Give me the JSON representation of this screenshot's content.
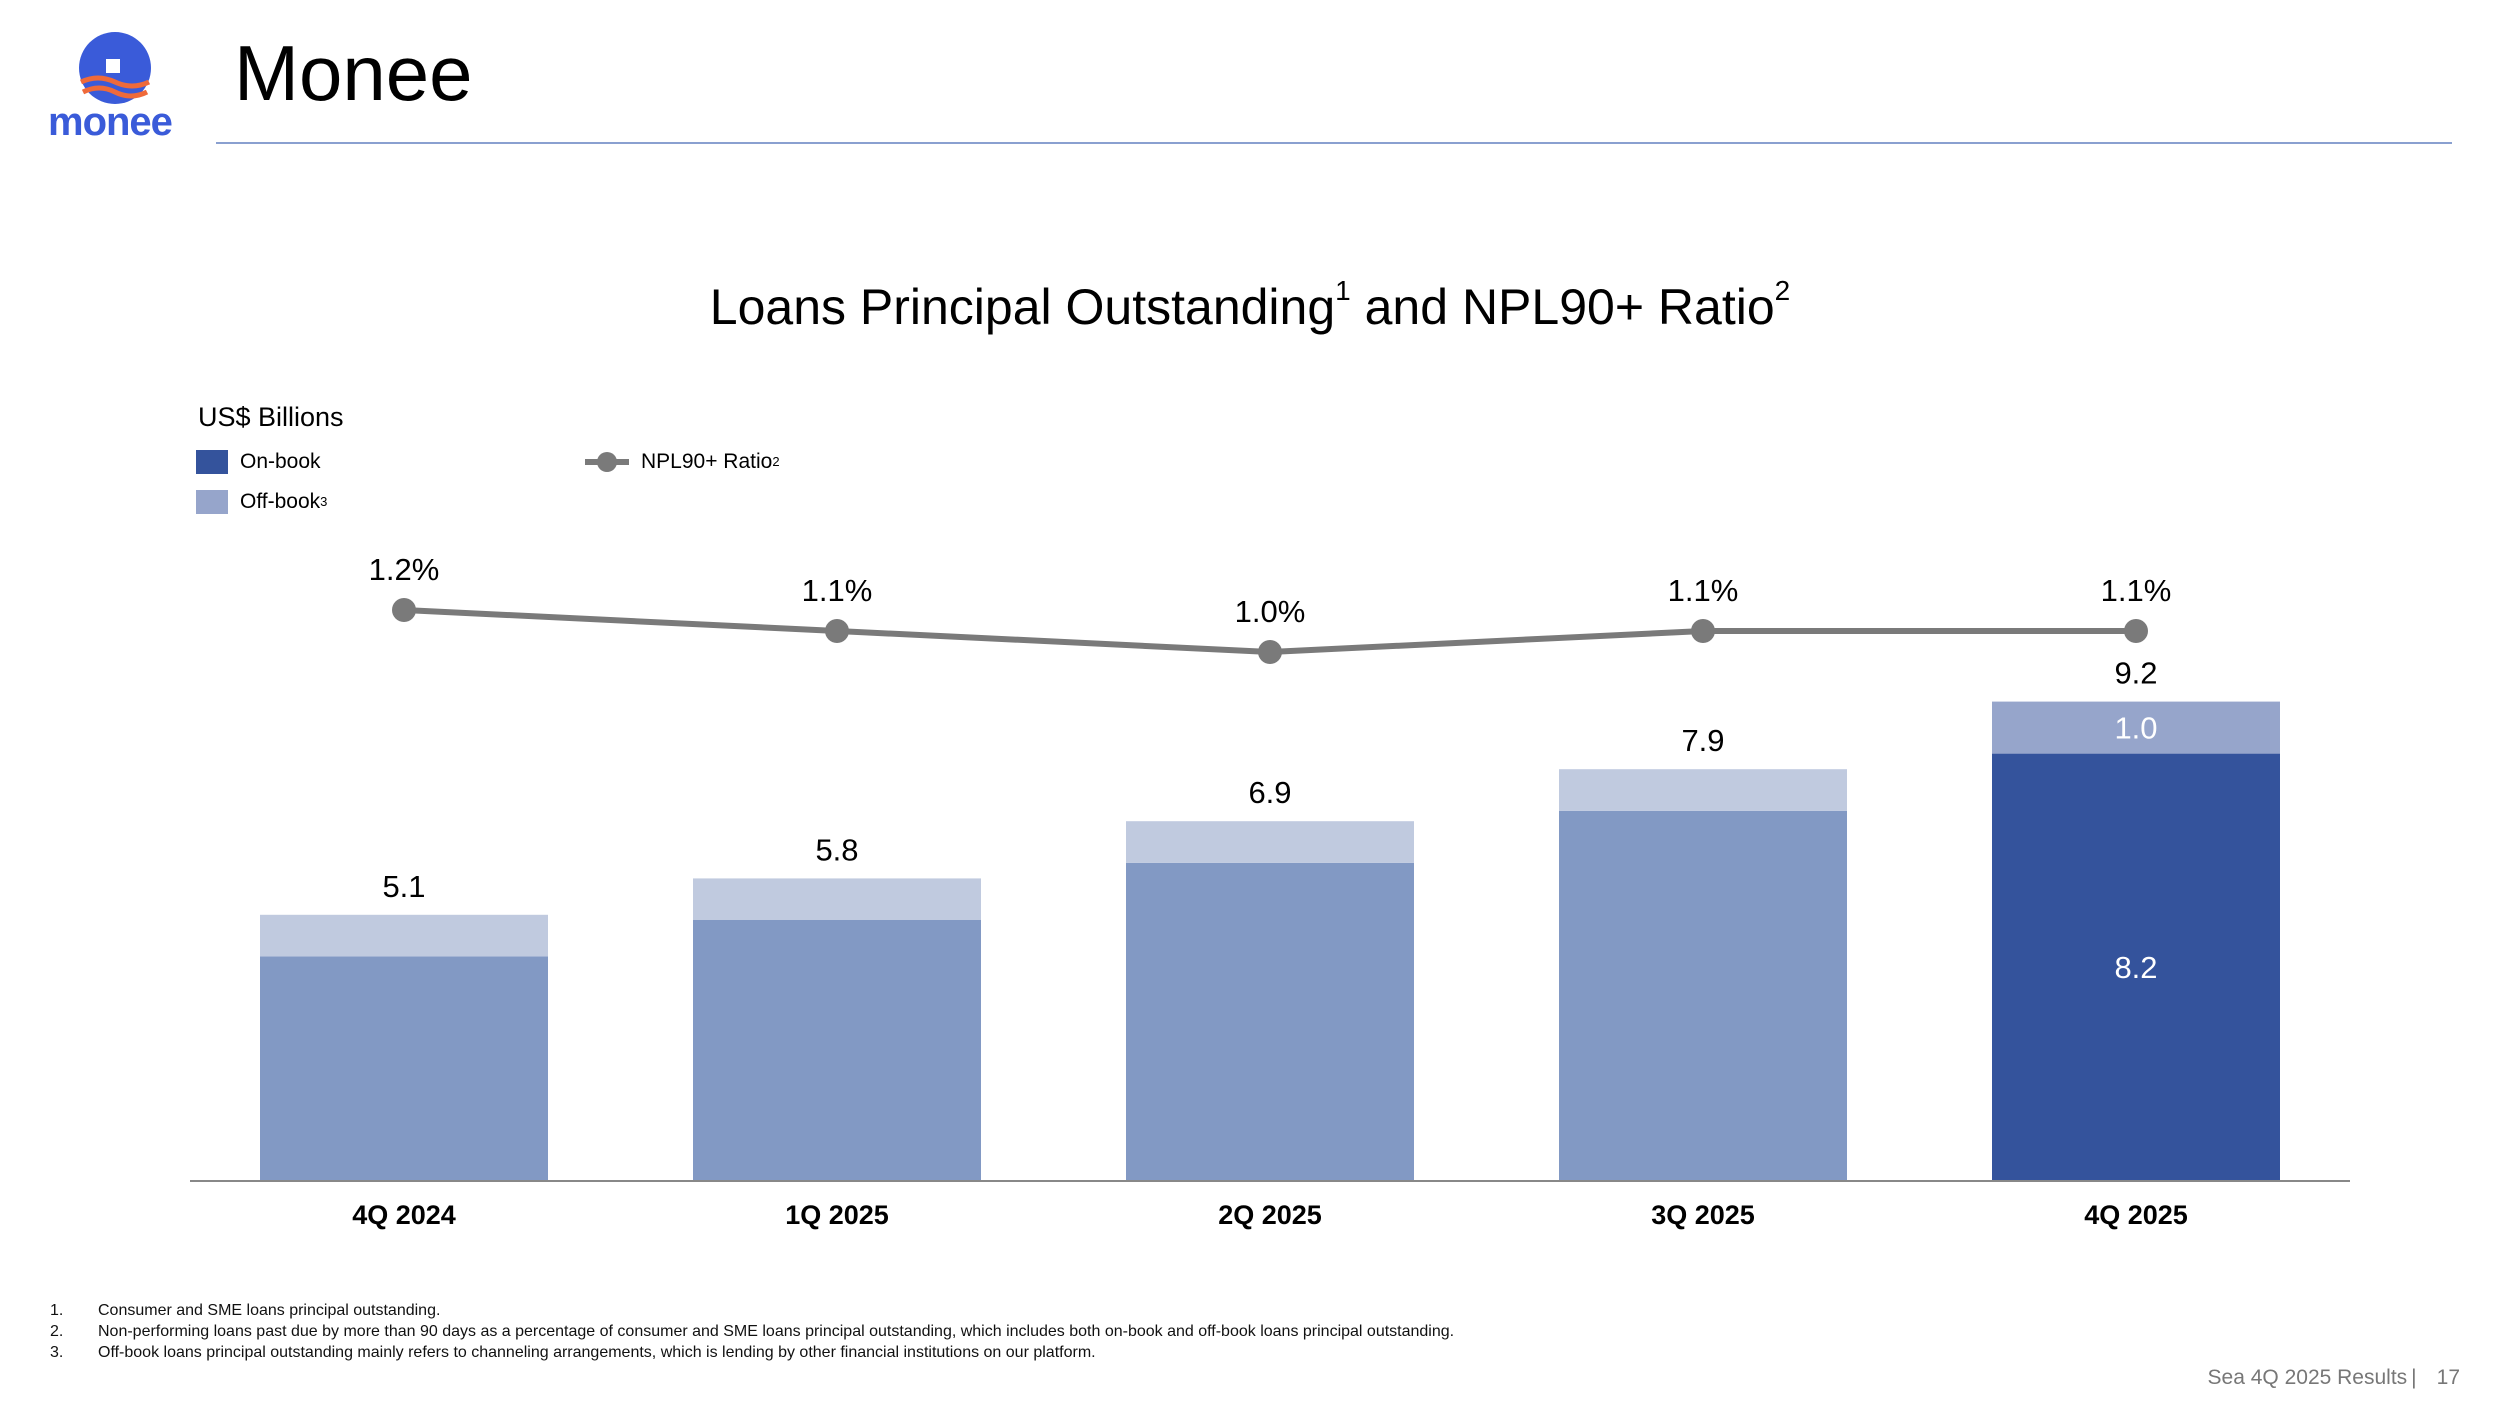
{
  "header": {
    "logo_text": "monee",
    "title": "Monee"
  },
  "colors": {
    "onbook_current": "#34539c",
    "offbook_current": "#96a5cb",
    "onbook_prior": "#8299c4",
    "offbook_prior": "#c0cadf",
    "npl_line": "#7a7a7a",
    "axis": "#888888"
  },
  "chart_data": {
    "type": "bar",
    "title": "Loans Principal Outstanding",
    "title_sup_1": "1",
    "title_mid": " and NPL90+ Ratio",
    "title_sup_2": "2",
    "ylabel": "US$ Billions",
    "categories": [
      "4Q 2024",
      "1Q 2025",
      "2Q 2025",
      "3Q 2025",
      "4Q 2025"
    ],
    "stacked": true,
    "series": [
      {
        "name": "On-book",
        "values": [
          4.3,
          5.0,
          6.1,
          7.1,
          8.2
        ]
      },
      {
        "name": "Off-book",
        "name_sup": "3",
        "values": [
          0.8,
          0.8,
          0.8,
          0.8,
          1.0
        ]
      }
    ],
    "totals": [
      5.1,
      5.8,
      6.9,
      7.9,
      9.2
    ],
    "total_labels": [
      "5.1",
      "5.8",
      "6.9",
      "7.9",
      "9.2"
    ],
    "segment_labels": {
      "index": 4,
      "onbook": "8.2",
      "offbook": "1.0"
    },
    "line_series": {
      "name": "NPL90+ Ratio",
      "name_sup": "2",
      "values": [
        1.2,
        1.1,
        1.0,
        1.1,
        1.1
      ],
      "labels": [
        "1.2%",
        "1.1%",
        "1.0%",
        "1.1%",
        "1.1%"
      ]
    },
    "legend_position": "top-left",
    "grid": false
  },
  "footnotes": [
    {
      "num": "1.",
      "text": "Consumer and SME loans principal outstanding."
    },
    {
      "num": "2.",
      "text": "Non-performing loans past due by more than 90 days as a percentage of consumer and SME loans principal outstanding, which includes both on-book and off-book loans principal outstanding."
    },
    {
      "num": "3.",
      "text": "Off-book loans principal outstanding mainly refers to channeling arrangements, which is lending by other financial institutions on our platform."
    }
  ],
  "footer": {
    "source": "Sea 4Q 2025 Results",
    "separator": "|",
    "page": "17"
  }
}
